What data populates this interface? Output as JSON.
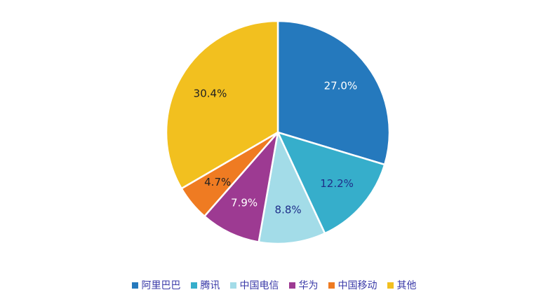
{
  "chart_data": {
    "type": "pie",
    "title": "",
    "slices": [
      {
        "label": "阿里巴巴",
        "value": 27.0,
        "display": "27.0%",
        "color": "#2579bd",
        "label_color": "#ffffff"
      },
      {
        "label": "腾讯",
        "value": 12.2,
        "display": "12.2%",
        "color": "#36aecb",
        "label_color": "#1f2f8a"
      },
      {
        "label": "中国电信",
        "value": 8.8,
        "display": "8.8%",
        "color": "#a3dce8",
        "label_color": "#1f2f8a"
      },
      {
        "label": "华为",
        "value": 7.9,
        "display": "7.9%",
        "color": "#9d3a92",
        "label_color": "#ffffff"
      },
      {
        "label": "中国移动",
        "value": 4.7,
        "display": "4.7%",
        "color": "#ef7b22",
        "label_color": "#222222"
      },
      {
        "label": "其他",
        "value": 30.4,
        "display": "30.4%",
        "color": "#f2c01f",
        "label_color": "#222222"
      }
    ],
    "legend_position": "bottom"
  }
}
